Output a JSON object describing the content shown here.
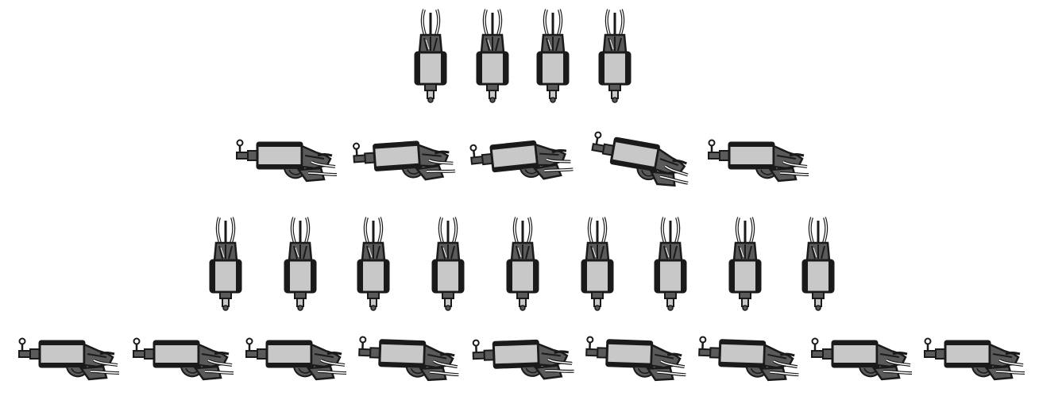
{
  "palette": {
    "outline": "#1a1a1a",
    "body_fill": "#c8c8c8",
    "dark_fill": "#5a5a5a",
    "wire": "#ffffff",
    "background": "#ffffff"
  },
  "rows": [
    {
      "orientation": "vertical",
      "count": 4,
      "icon": "stepper-motor-upright-icon"
    },
    {
      "orientation": "horizontal",
      "count": 5,
      "icon": "stepper-motor-lying-icon"
    },
    {
      "orientation": "vertical",
      "count": 9,
      "icon": "stepper-motor-upright-icon"
    },
    {
      "orientation": "horizontal",
      "count": 9,
      "icon": "stepper-motor-lying-icon"
    }
  ]
}
